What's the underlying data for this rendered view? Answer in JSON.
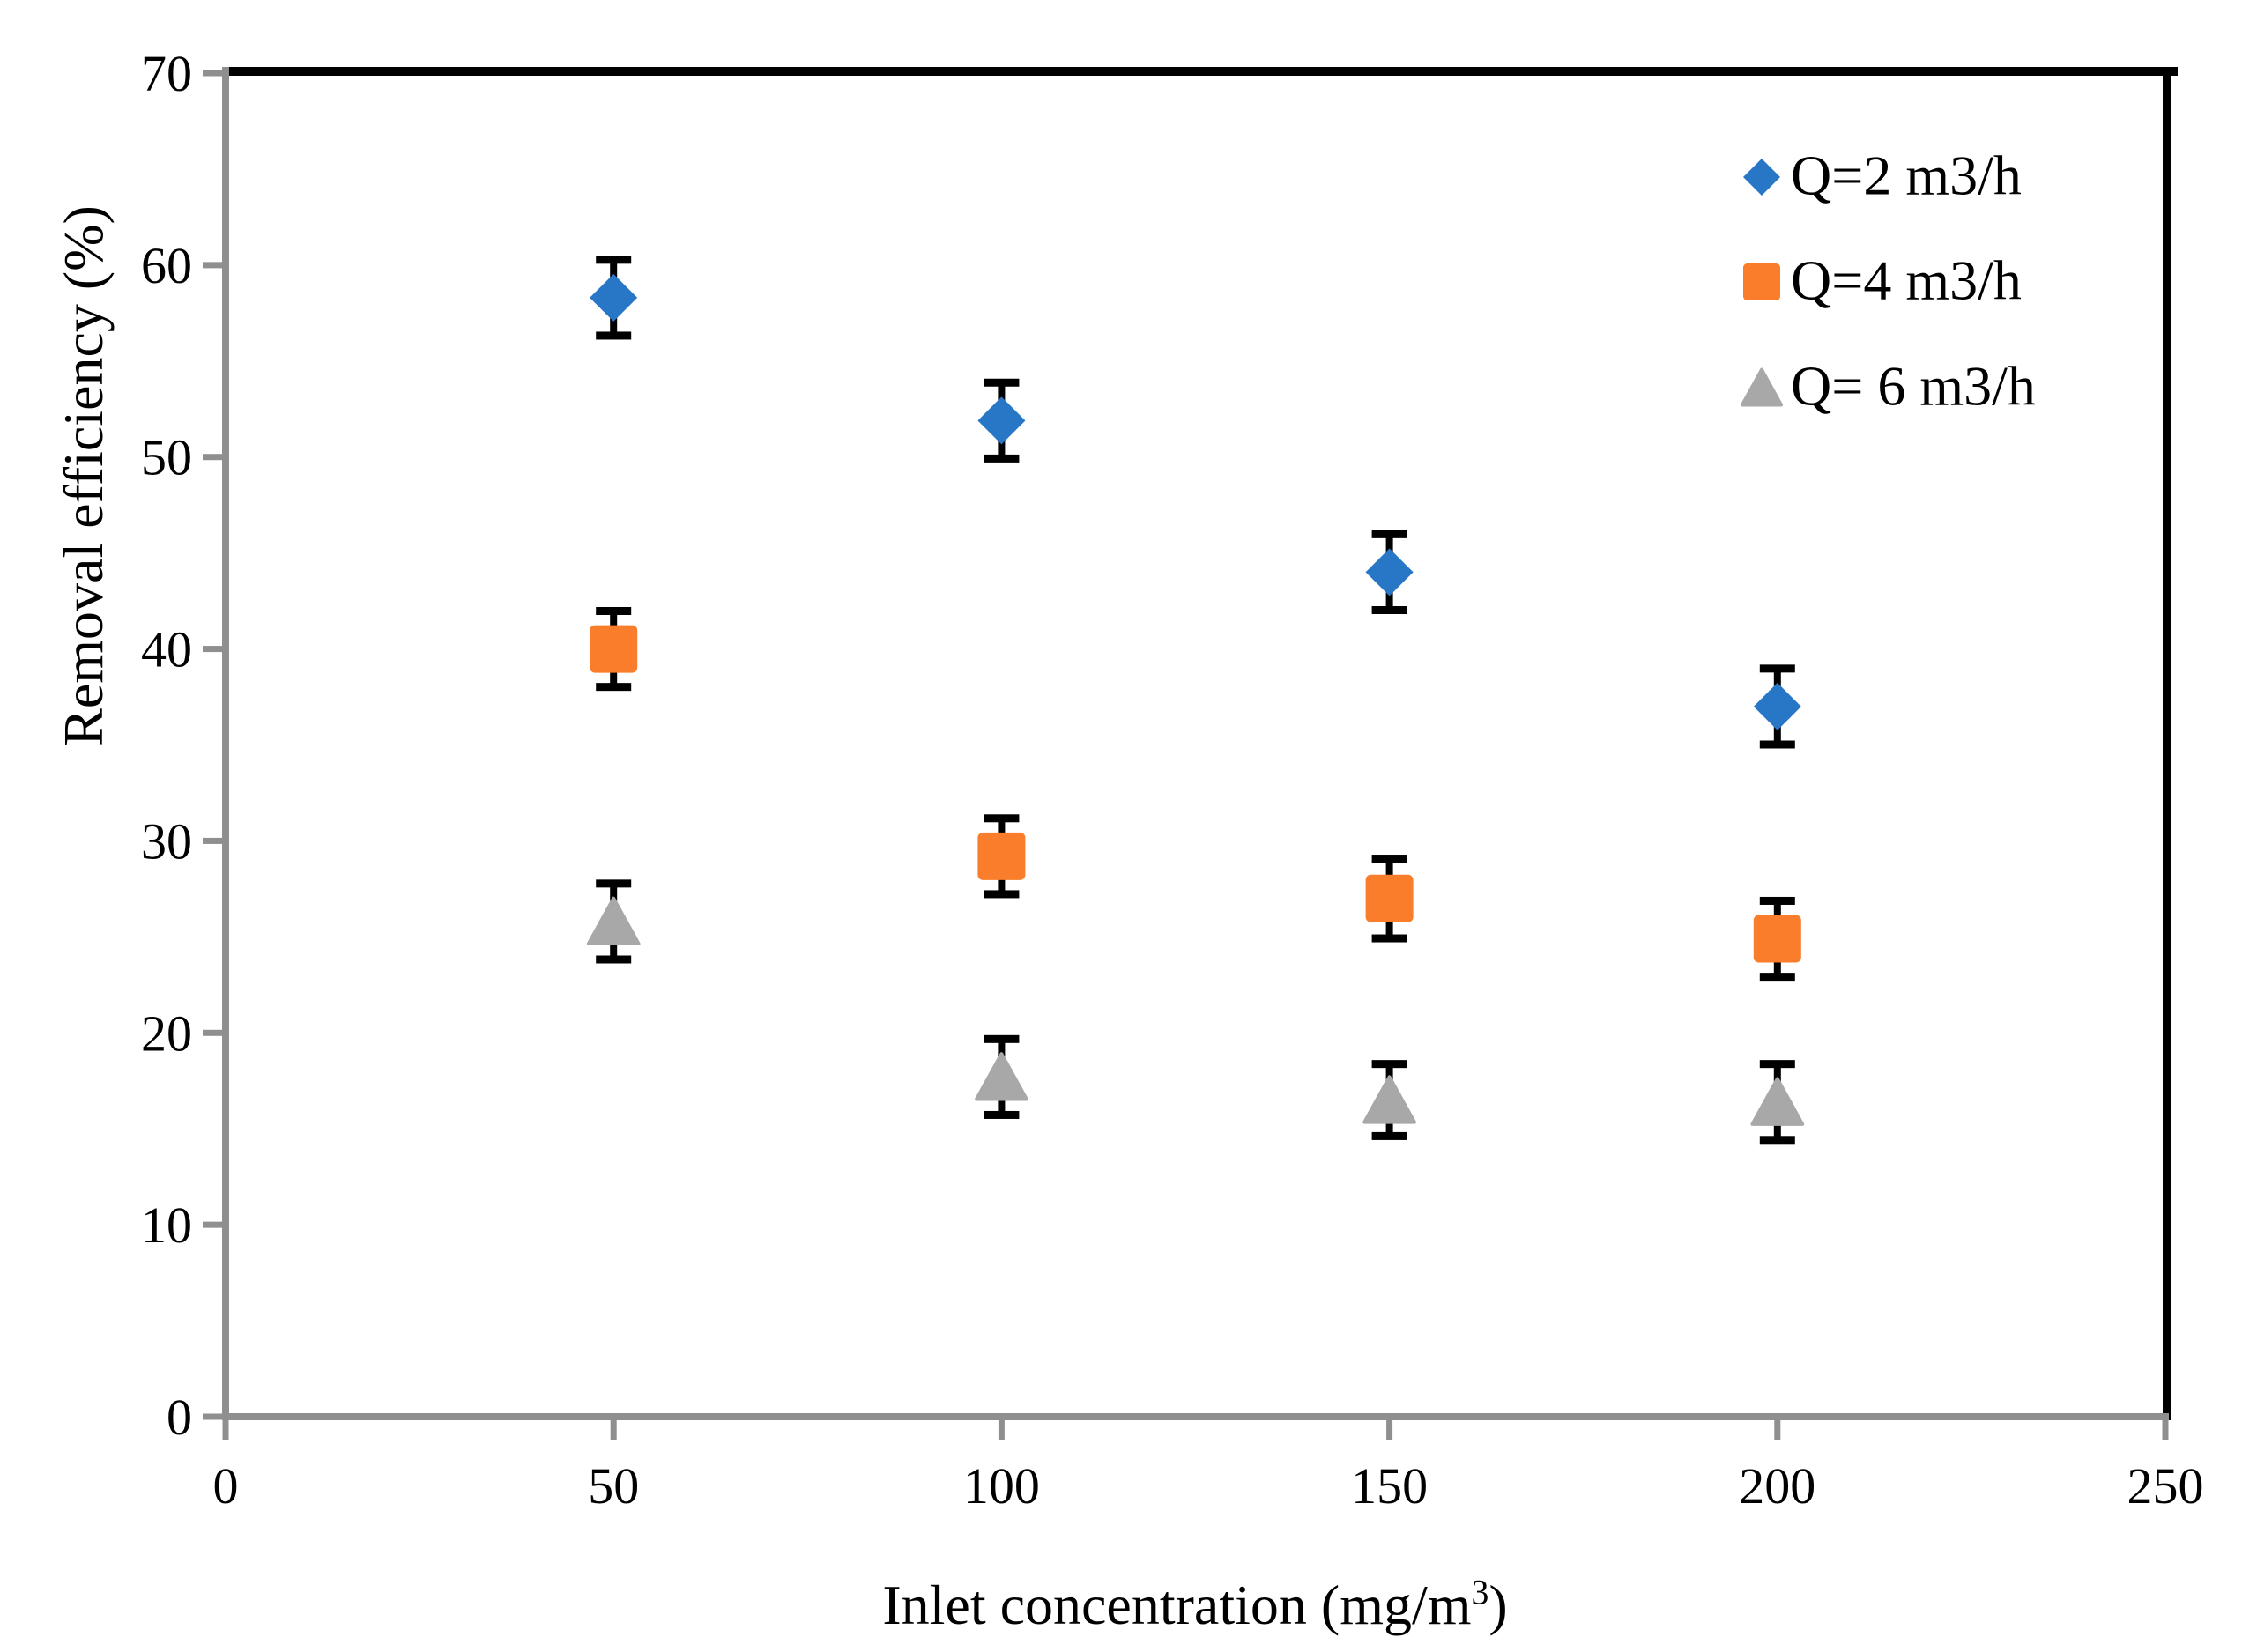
{
  "chart_data": {
    "type": "scatter",
    "title": "",
    "xlabel": "Inlet concentration (mg/m3)",
    "xlabel_parts": {
      "pre": "Inlet concentration (mg/m",
      "sup": "3",
      "post": ")"
    },
    "ylabel": "Removal efficiency (%)",
    "xlim": [
      0,
      250
    ],
    "ylim": [
      0,
      70
    ],
    "x_ticks": [
      0,
      50,
      100,
      150,
      200,
      250
    ],
    "y_ticks": [
      0,
      10,
      20,
      30,
      40,
      50,
      60,
      70
    ],
    "grid": false,
    "error_bars": true,
    "legend_position": "top-right",
    "x": [
      50,
      100,
      150,
      200
    ],
    "series": [
      {
        "name": "Q=2 m3/h",
        "marker": "diamond",
        "color": "#2876C6",
        "values": [
          58.3,
          51.9,
          44.0,
          37.0
        ],
        "errors": [
          2.0,
          2.0,
          2.0,
          2.0
        ]
      },
      {
        "name": "Q=4 m3/h",
        "marker": "square",
        "color": "#F97D2A",
        "values": [
          40.0,
          29.2,
          27.0,
          24.9
        ],
        "errors": [
          2.0,
          2.0,
          2.1,
          2.0
        ]
      },
      {
        "name": "Q= 6 m3/h",
        "marker": "triangle",
        "color": "#A8A8A8",
        "values": [
          25.8,
          17.7,
          16.5,
          16.4
        ],
        "errors": [
          2.0,
          2.0,
          1.9,
          2.0
        ]
      }
    ],
    "style": {
      "axis_color": "#8F8F8F",
      "border_color": "#000000",
      "error_bar_color": "#000000",
      "text_color": "#000000"
    }
  }
}
